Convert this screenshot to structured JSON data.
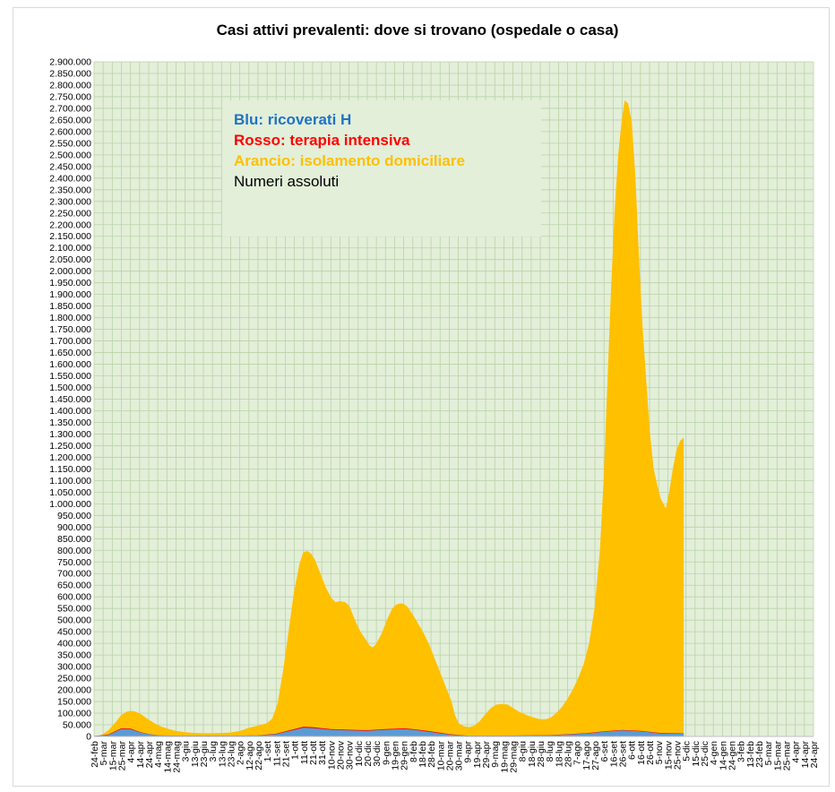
{
  "chart_data": {
    "type": "area",
    "title": "Casi attivi prevalenti: dove si trovano (ospedale o casa)",
    "legend": [
      {
        "text": "Blu: ricoverati H",
        "color": "#1f73c4"
      },
      {
        "text": "Rosso: terapia intensiva",
        "color": "#ff0000"
      },
      {
        "text": "Arancio: isolamento domiciliare",
        "color": "#ffc000"
      },
      {
        "text": "Numeri assoluti",
        "color": "#000000"
      }
    ],
    "legend_position": "top-left",
    "ylim": [
      0,
      2900000
    ],
    "y_tick_step": 50000,
    "grid": true,
    "plot_background": "#e3efd9",
    "grid_color": "#b9d3a6",
    "x_tick_labels": [
      "24-feb",
      "5-mar",
      "15-mar",
      "25-mar",
      "4-apr",
      "14-apr",
      "24-apr",
      "4-mag",
      "14-mag",
      "24-mag",
      "3-giu",
      "13-giu",
      "23-giu",
      "3-lug",
      "13-lug",
      "23-lug",
      "2-ago",
      "12-ago",
      "22-ago",
      "1-set",
      "11-set",
      "21-set",
      "1-ott",
      "11-ott",
      "21-ott",
      "31-ott",
      "10-nov",
      "20-nov",
      "30-nov",
      "10-dic",
      "20-dic",
      "30-dic",
      "9-gen",
      "19-gen",
      "29-gen",
      "8-feb",
      "18-feb",
      "28-feb",
      "10-mar",
      "20-mar",
      "30-mar",
      "9-apr",
      "19-apr",
      "29-apr",
      "9-mag",
      "19-mag",
      "29-mag",
      "8-giu",
      "18-giu",
      "28-giu",
      "8-lug",
      "18-lug",
      "28-lug",
      "7-ago",
      "17-ago",
      "27-ago",
      "6-set",
      "16-set",
      "26-set",
      "6-ott",
      "16-ott",
      "26-ott",
      "5-nov",
      "15-nov",
      "25-nov",
      "5-dic",
      "15-dic",
      "25-dic",
      "4-gen",
      "14-gen",
      "24-gen",
      "3-feb",
      "13-feb",
      "23-feb",
      "5-mar",
      "15-mar",
      "25-mar",
      "4-apr",
      "14-apr",
      "24-apr"
    ],
    "x_step_days": 10,
    "series": [
      {
        "name": "isolamento domiciliare",
        "color": "#ffc000",
        "points": [
          [
            0,
            0
          ],
          [
            8,
            3000
          ],
          [
            16,
            25000
          ],
          [
            24,
            60000
          ],
          [
            30,
            90000
          ],
          [
            36,
            105000
          ],
          [
            41,
            108000
          ],
          [
            46,
            104000
          ],
          [
            52,
            92000
          ],
          [
            58,
            75000
          ],
          [
            66,
            55000
          ],
          [
            74,
            40000
          ],
          [
            82,
            30000
          ],
          [
            90,
            22000
          ],
          [
            100,
            16000
          ],
          [
            110,
            13000
          ],
          [
            120,
            12000
          ],
          [
            130,
            12000
          ],
          [
            140,
            13000
          ],
          [
            150,
            15000
          ],
          [
            160,
            22000
          ],
          [
            170,
            35000
          ],
          [
            180,
            45000
          ],
          [
            190,
            55000
          ],
          [
            196,
            75000
          ],
          [
            202,
            140000
          ],
          [
            208,
            280000
          ],
          [
            214,
            450000
          ],
          [
            220,
            620000
          ],
          [
            226,
            740000
          ],
          [
            230,
            790000
          ],
          [
            234,
            795000
          ],
          [
            238,
            785000
          ],
          [
            242,
            760000
          ],
          [
            248,
            700000
          ],
          [
            254,
            640000
          ],
          [
            260,
            595000
          ],
          [
            265,
            575000
          ],
          [
            270,
            580000
          ],
          [
            276,
            575000
          ],
          [
            280,
            560000
          ],
          [
            286,
            500000
          ],
          [
            292,
            450000
          ],
          [
            298,
            415000
          ],
          [
            302,
            390000
          ],
          [
            306,
            380000
          ],
          [
            310,
            395000
          ],
          [
            316,
            440000
          ],
          [
            322,
            500000
          ],
          [
            328,
            550000
          ],
          [
            332,
            565000
          ],
          [
            336,
            570000
          ],
          [
            340,
            568000
          ],
          [
            344,
            555000
          ],
          [
            350,
            520000
          ],
          [
            356,
            480000
          ],
          [
            362,
            440000
          ],
          [
            368,
            390000
          ],
          [
            374,
            330000
          ],
          [
            380,
            270000
          ],
          [
            386,
            210000
          ],
          [
            392,
            150000
          ],
          [
            396,
            90000
          ],
          [
            400,
            55000
          ],
          [
            406,
            42000
          ],
          [
            412,
            38000
          ],
          [
            418,
            45000
          ],
          [
            424,
            65000
          ],
          [
            430,
            95000
          ],
          [
            436,
            120000
          ],
          [
            442,
            135000
          ],
          [
            448,
            138000
          ],
          [
            454,
            135000
          ],
          [
            460,
            120000
          ],
          [
            466,
            105000
          ],
          [
            472,
            95000
          ],
          [
            478,
            85000
          ],
          [
            484,
            78000
          ],
          [
            490,
            72000
          ],
          [
            496,
            72000
          ],
          [
            502,
            80000
          ],
          [
            508,
            100000
          ],
          [
            514,
            125000
          ],
          [
            520,
            160000
          ],
          [
            526,
            200000
          ],
          [
            532,
            250000
          ],
          [
            538,
            310000
          ],
          [
            544,
            400000
          ],
          [
            550,
            550000
          ],
          [
            556,
            800000
          ],
          [
            560,
            1100000
          ],
          [
            564,
            1500000
          ],
          [
            568,
            1900000
          ],
          [
            572,
            2250000
          ],
          [
            576,
            2500000
          ],
          [
            580,
            2650000
          ],
          [
            583,
            2730000
          ],
          [
            586,
            2720000
          ],
          [
            590,
            2640000
          ],
          [
            594,
            2400000
          ],
          [
            598,
            2050000
          ],
          [
            602,
            1750000
          ],
          [
            606,
            1520000
          ],
          [
            610,
            1300000
          ],
          [
            614,
            1150000
          ],
          [
            618,
            1080000
          ],
          [
            622,
            1020000
          ],
          [
            626,
            990000
          ],
          [
            628,
            975000
          ],
          [
            632,
            1050000
          ],
          [
            636,
            1150000
          ],
          [
            640,
            1230000
          ],
          [
            644,
            1270000
          ],
          [
            647,
            1280000
          ]
        ]
      },
      {
        "name": "terapia intensiva",
        "color": "#ff0000",
        "points": [
          [
            0,
            0
          ],
          [
            16,
            7000
          ],
          [
            30,
            33000
          ],
          [
            40,
            32000
          ],
          [
            50,
            18000
          ],
          [
            60,
            9000
          ],
          [
            70,
            3000
          ],
          [
            90,
            1000
          ],
          [
            150,
            800
          ],
          [
            180,
            3000
          ],
          [
            200,
            10000
          ],
          [
            215,
            25000
          ],
          [
            230,
            40000
          ],
          [
            240,
            38000
          ],
          [
            260,
            30000
          ],
          [
            280,
            27000
          ],
          [
            300,
            25000
          ],
          [
            320,
            30000
          ],
          [
            340,
            33000
          ],
          [
            350,
            30000
          ],
          [
            370,
            20000
          ],
          [
            390,
            8000
          ],
          [
            410,
            1500
          ],
          [
            440,
            1200
          ],
          [
            500,
            4000
          ],
          [
            540,
            12000
          ],
          [
            560,
            20000
          ],
          [
            580,
            26000
          ],
          [
            600,
            22000
          ],
          [
            620,
            14000
          ],
          [
            640,
            12000
          ],
          [
            647,
            11000
          ]
        ]
      },
      {
        "name": "ricoverati H",
        "color": "#5b9bd5",
        "points": [
          [
            0,
            0
          ],
          [
            16,
            5000
          ],
          [
            30,
            30000
          ],
          [
            40,
            29000
          ],
          [
            50,
            16000
          ],
          [
            60,
            8000
          ],
          [
            70,
            2500
          ],
          [
            90,
            800
          ],
          [
            150,
            600
          ],
          [
            180,
            2500
          ],
          [
            200,
            8000
          ],
          [
            215,
            22000
          ],
          [
            230,
            36000
          ],
          [
            240,
            34000
          ],
          [
            260,
            27000
          ],
          [
            280,
            24000
          ],
          [
            300,
            22000
          ],
          [
            320,
            27000
          ],
          [
            340,
            30000
          ],
          [
            350,
            27000
          ],
          [
            370,
            17000
          ],
          [
            390,
            6000
          ],
          [
            410,
            1000
          ],
          [
            440,
            900
          ],
          [
            500,
            3000
          ],
          [
            540,
            10000
          ],
          [
            560,
            18000
          ],
          [
            580,
            24000
          ],
          [
            600,
            20000
          ],
          [
            620,
            12000
          ],
          [
            640,
            10000
          ],
          [
            647,
            9500
          ]
        ]
      }
    ]
  }
}
